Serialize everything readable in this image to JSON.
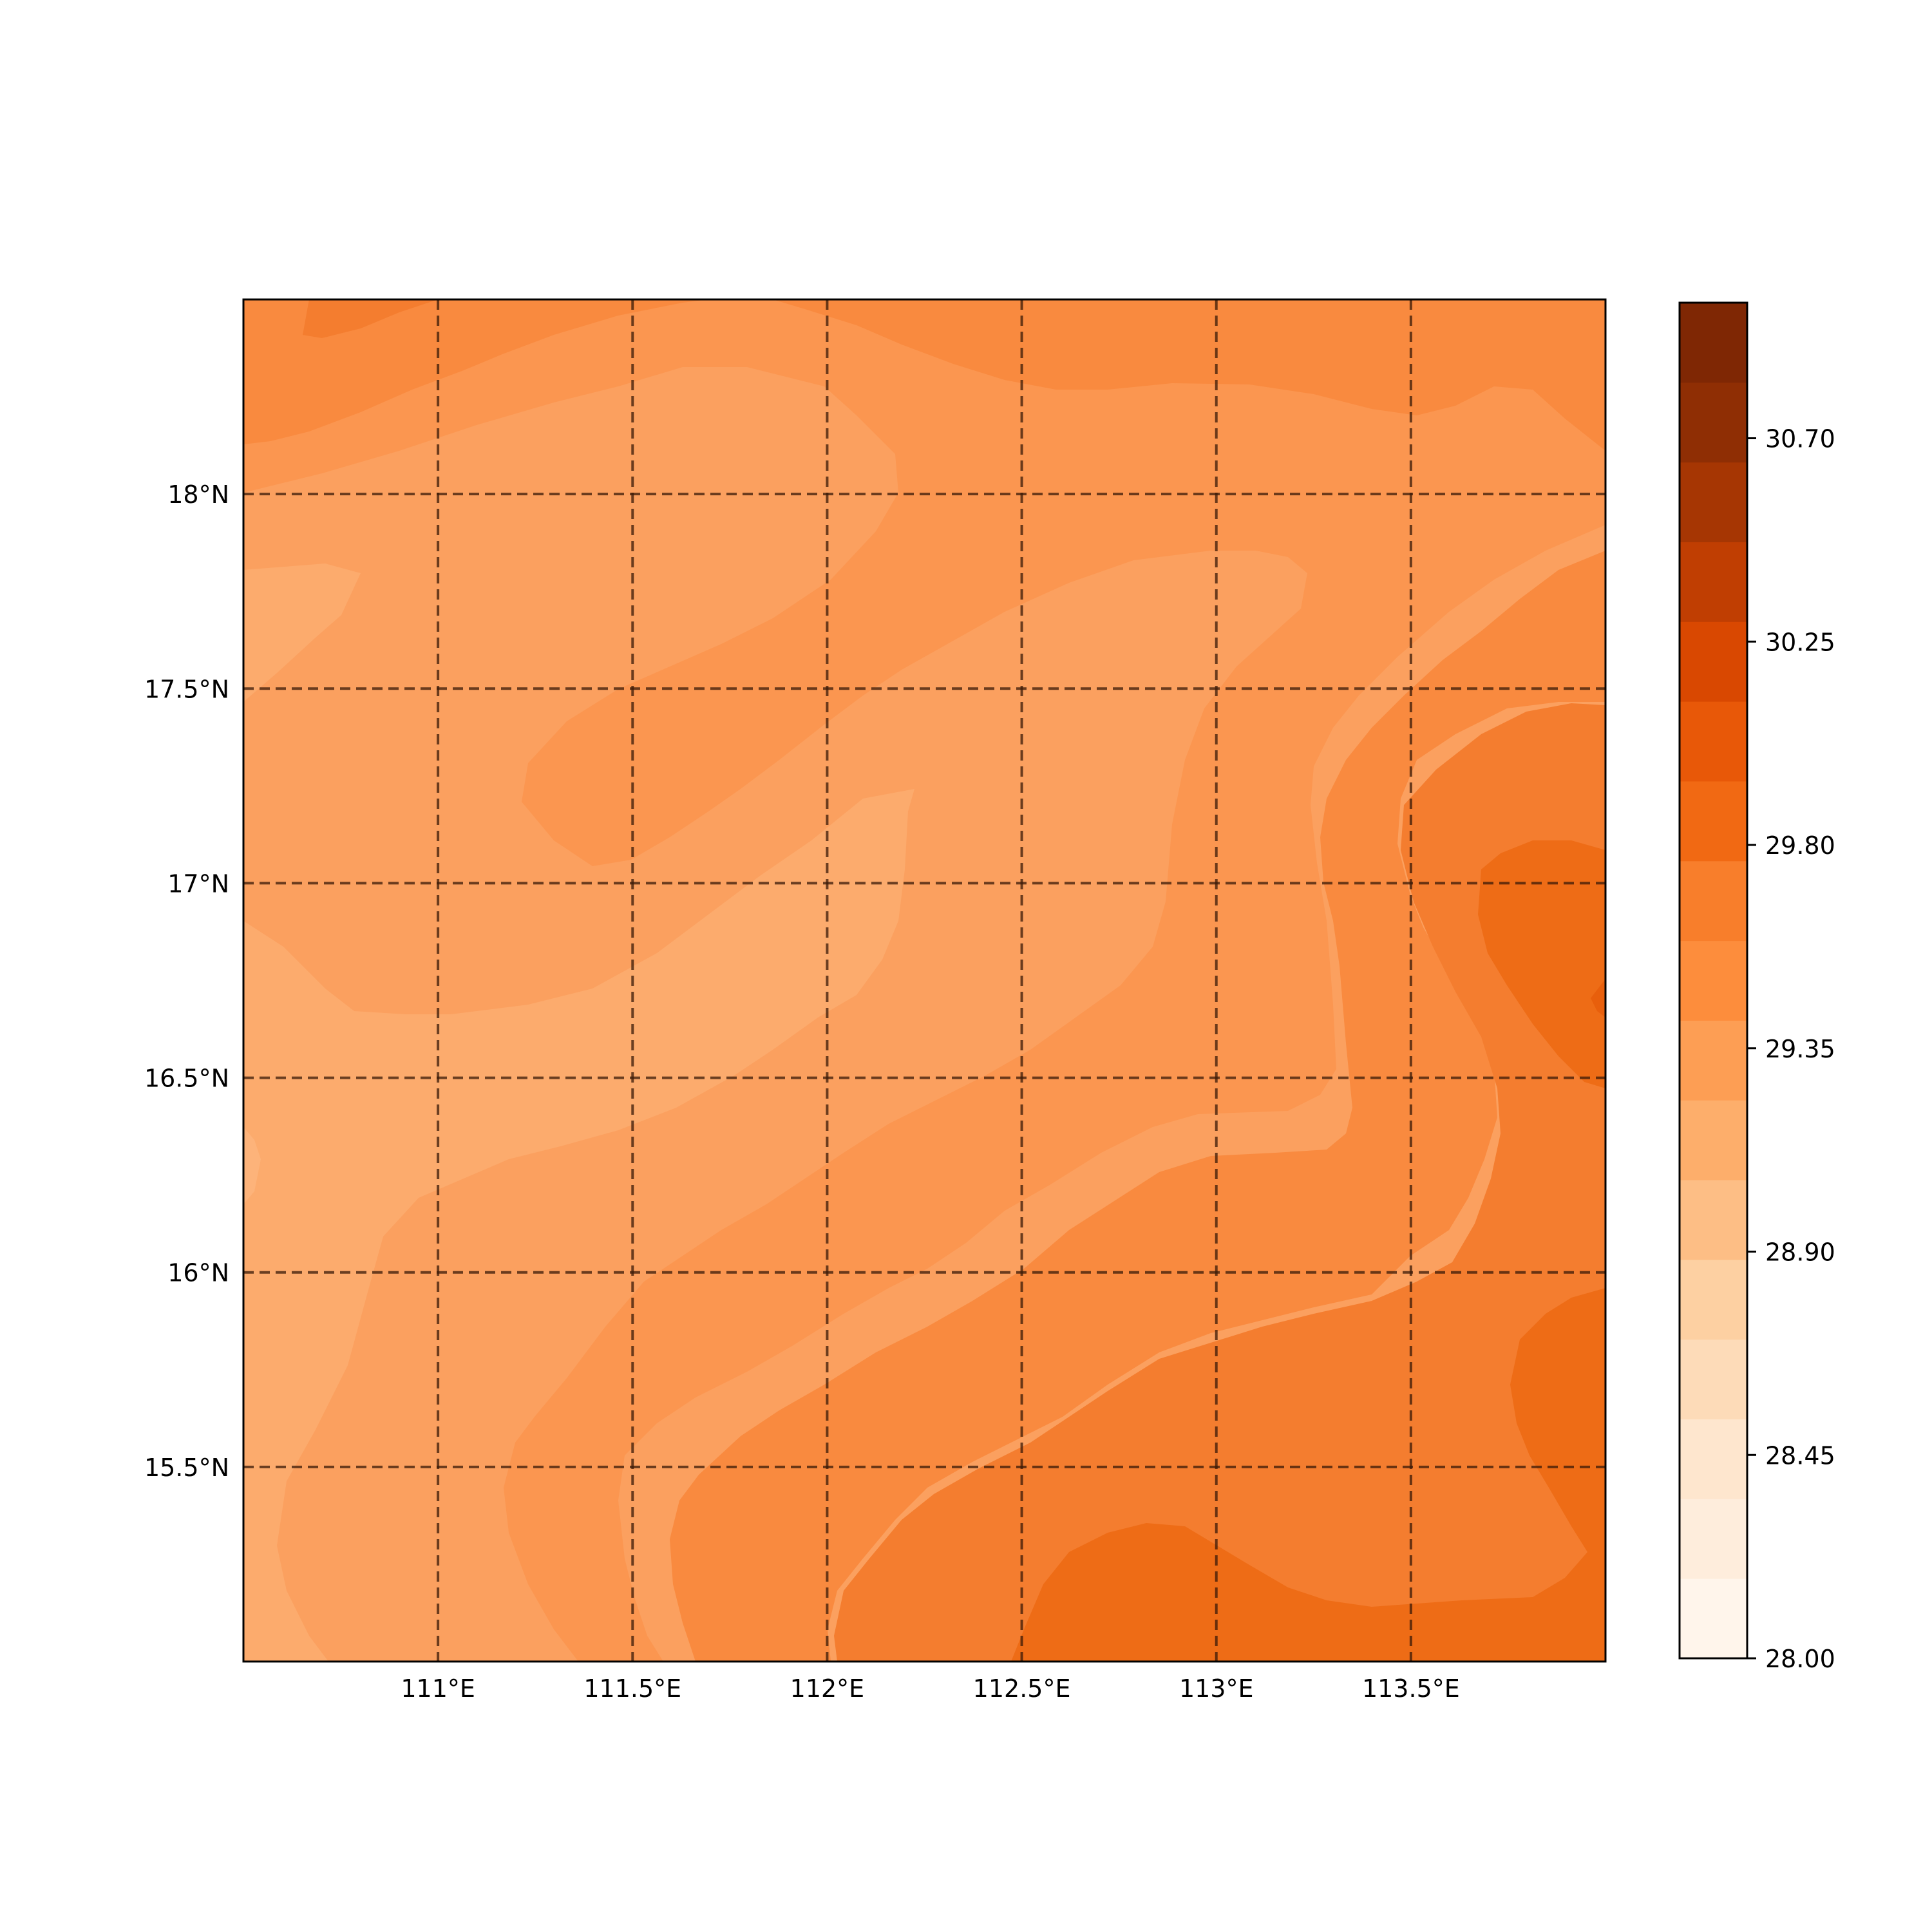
{
  "map": {
    "lon_ticks": [
      "111°E",
      "111.5°E",
      "112°E",
      "112.5°E",
      "113°E",
      "113.5°E"
    ],
    "lat_ticks": [
      "18°N",
      "17.5°N",
      "17°N",
      "16.5°N",
      "16°N",
      "15.5°N"
    ],
    "extent": {
      "lon_min": 110.5,
      "lon_max": 114.0,
      "lat_min": 15.0,
      "lat_max": 18.5
    },
    "gridlines": {
      "style": "dashed",
      "color": "#3a1a08"
    },
    "field_levels": [
      {
        "value": 28.9,
        "color": "#fcab6d"
      },
      {
        "value": 29.05,
        "color": "#fba05f"
      },
      {
        "value": 29.2,
        "color": "#fb9650"
      },
      {
        "value": 29.35,
        "color": "#f98a3f"
      },
      {
        "value": 29.5,
        "color": "#f47d2f"
      },
      {
        "value": 29.65,
        "color": "#ee6c16"
      }
    ]
  },
  "colorbar": {
    "tick_labels": [
      "30.70",
      "30.25",
      "29.80",
      "29.35",
      "28.90",
      "28.45",
      "28.00"
    ],
    "tick_values": [
      30.7,
      30.25,
      29.8,
      29.35,
      28.9,
      28.45,
      28.0
    ],
    "min": 28.0,
    "max": 31.0,
    "colors": [
      "#fff5eb",
      "#feeddc",
      "#fee6ce",
      "#fddbb8",
      "#fdd0a2",
      "#fdbe85",
      "#fdae6b",
      "#fd9e54",
      "#fd8d3c",
      "#f87e2b",
      "#f16913",
      "#e85808",
      "#d94801",
      "#c03e02",
      "#a63603",
      "#8f2e04",
      "#7f2704"
    ]
  }
}
